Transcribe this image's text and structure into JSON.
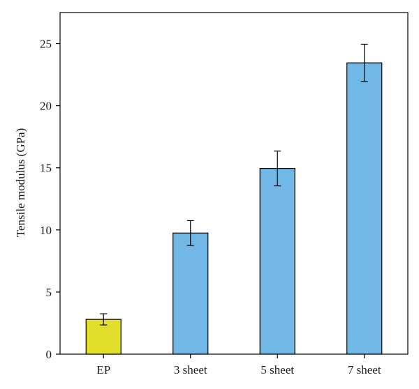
{
  "chart_data": {
    "type": "bar",
    "title": "",
    "xlabel": "",
    "ylabel": "Tensile modulus (GPa)",
    "ylim": [
      0,
      27.5
    ],
    "yticks": [
      0,
      5,
      10,
      15,
      20,
      25
    ],
    "grid": false,
    "categories": [
      "EP",
      "3 sheet",
      "5 sheet",
      "7 sheet"
    ],
    "values": [
      2.8,
      9.75,
      14.95,
      23.45
    ],
    "error": [
      0.45,
      1.0,
      1.4,
      1.5
    ],
    "colors": [
      "#e1de2c",
      "#72b8e6",
      "#72b8e6",
      "#72b8e6"
    ]
  }
}
